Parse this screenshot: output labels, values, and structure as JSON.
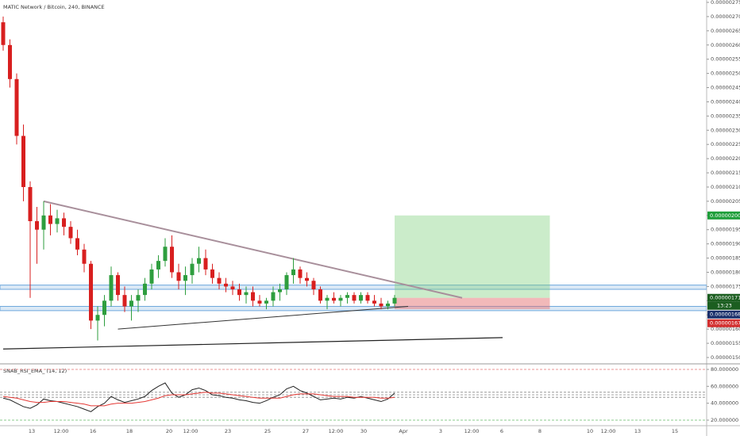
{
  "chart_data": {
    "type": "candlestick",
    "title": "MATIC Network / Bitcoin, 240, BINANCE",
    "up_color": "#2e9e3e",
    "down_color": "#d81f1f",
    "ylim": [
      1.5e-06,
      2.75e-06
    ],
    "yticks": [
      {
        "value": 1.5e-06,
        "label": "0.00000150"
      },
      {
        "value": 1.55e-06,
        "label": "0.00000155"
      },
      {
        "value": 1.6e-06,
        "label": "0.00000160"
      },
      {
        "value": 1.65e-06,
        "label": "0.00000165"
      },
      {
        "value": 1.7e-06,
        "label": "0.00000170"
      },
      {
        "value": 1.75e-06,
        "label": "0.00000175"
      },
      {
        "value": 1.8e-06,
        "label": "0.00000180"
      },
      {
        "value": 1.85e-06,
        "label": "0.00000185"
      },
      {
        "value": 1.9e-06,
        "label": "0.00000190"
      },
      {
        "value": 1.95e-06,
        "label": "0.00000195"
      },
      {
        "value": 2e-06,
        "label": "0.00000200"
      },
      {
        "value": 2.05e-06,
        "label": "0.00000205"
      },
      {
        "value": 2.1e-06,
        "label": "0.00000210"
      },
      {
        "value": 2.15e-06,
        "label": "0.00000215"
      },
      {
        "value": 2.2e-06,
        "label": "0.00000220"
      },
      {
        "value": 2.25e-06,
        "label": "0.00000225"
      },
      {
        "value": 2.3e-06,
        "label": "0.00000230"
      },
      {
        "value": 2.35e-06,
        "label": "0.00000235"
      },
      {
        "value": 2.4e-06,
        "label": "0.00000240"
      },
      {
        "value": 2.45e-06,
        "label": "0.00000245"
      },
      {
        "value": 2.5e-06,
        "label": "0.00000250"
      },
      {
        "value": 2.55e-06,
        "label": "0.00000255"
      },
      {
        "value": 2.6e-06,
        "label": "0.00000260"
      },
      {
        "value": 2.65e-06,
        "label": "0.00000265"
      },
      {
        "value": 2.7e-06,
        "label": "0.00000270"
      },
      {
        "value": 2.75e-06,
        "label": "0.00000275"
      }
    ],
    "x_labels": [
      "13",
      "12:00",
      "16",
      "18",
      "20",
      "12:00",
      "23",
      "25",
      "27",
      "12:00",
      "30",
      "Apr",
      "3",
      "12:00",
      "6",
      "8",
      "10",
      "12:00",
      "13",
      "15"
    ],
    "candles": [
      {
        "o": 2.68e-06,
        "h": 2.7e-06,
        "l": 2.58e-06,
        "c": 2.6e-06
      },
      {
        "o": 2.6e-06,
        "h": 2.62e-06,
        "l": 2.45e-06,
        "c": 2.48e-06
      },
      {
        "o": 2.48e-06,
        "h": 2.5e-06,
        "l": 2.25e-06,
        "c": 2.28e-06
      },
      {
        "o": 2.28e-06,
        "h": 2.32e-06,
        "l": 2.05e-06,
        "c": 2.1e-06
      },
      {
        "o": 2.1e-06,
        "h": 2.12e-06,
        "l": 1.71e-06,
        "c": 1.98e-06
      },
      {
        "o": 1.98e-06,
        "h": 2.03e-06,
        "l": 1.83e-06,
        "c": 1.95e-06
      },
      {
        "o": 1.95e-06,
        "h": 2.05e-06,
        "l": 1.88e-06,
        "c": 2e-06
      },
      {
        "o": 2e-06,
        "h": 2.04e-06,
        "l": 1.93e-06,
        "c": 1.97e-06
      },
      {
        "o": 1.97e-06,
        "h": 2.02e-06,
        "l": 1.94e-06,
        "c": 1.99e-06
      },
      {
        "o": 1.99e-06,
        "h": 2.01e-06,
        "l": 1.93e-06,
        "c": 1.96e-06
      },
      {
        "o": 1.96e-06,
        "h": 1.98e-06,
        "l": 1.9e-06,
        "c": 1.92e-06
      },
      {
        "o": 1.92e-06,
        "h": 1.95e-06,
        "l": 1.86e-06,
        "c": 1.88e-06
      },
      {
        "o": 1.88e-06,
        "h": 1.9e-06,
        "l": 1.8e-06,
        "c": 1.83e-06
      },
      {
        "o": 1.83e-06,
        "h": 1.84e-06,
        "l": 1.6e-06,
        "c": 1.63e-06
      },
      {
        "o": 1.63e-06,
        "h": 1.68e-06,
        "l": 1.56e-06,
        "c": 1.65e-06
      },
      {
        "o": 1.65e-06,
        "h": 1.72e-06,
        "l": 1.61e-06,
        "c": 1.7e-06
      },
      {
        "o": 1.7e-06,
        "h": 1.82e-06,
        "l": 1.68e-06,
        "c": 1.79e-06
      },
      {
        "o": 1.79e-06,
        "h": 1.8e-06,
        "l": 1.7e-06,
        "c": 1.72e-06
      },
      {
        "o": 1.72e-06,
        "h": 1.75e-06,
        "l": 1.66e-06,
        "c": 1.68e-06
      },
      {
        "o": 1.68e-06,
        "h": 1.72e-06,
        "l": 1.63e-06,
        "c": 1.7e-06
      },
      {
        "o": 1.7e-06,
        "h": 1.74e-06,
        "l": 1.66e-06,
        "c": 1.72e-06
      },
      {
        "o": 1.72e-06,
        "h": 1.78e-06,
        "l": 1.7e-06,
        "c": 1.76e-06
      },
      {
        "o": 1.76e-06,
        "h": 1.83e-06,
        "l": 1.74e-06,
        "c": 1.81e-06
      },
      {
        "o": 1.81e-06,
        "h": 1.86e-06,
        "l": 1.78e-06,
        "c": 1.84e-06
      },
      {
        "o": 1.84e-06,
        "h": 1.92e-06,
        "l": 1.82e-06,
        "c": 1.89e-06
      },
      {
        "o": 1.89e-06,
        "h": 1.93e-06,
        "l": 1.78e-06,
        "c": 1.8e-06
      },
      {
        "o": 1.8e-06,
        "h": 1.83e-06,
        "l": 1.74e-06,
        "c": 1.77e-06
      },
      {
        "o": 1.77e-06,
        "h": 1.82e-06,
        "l": 1.72e-06,
        "c": 1.79e-06
      },
      {
        "o": 1.79e-06,
        "h": 1.85e-06,
        "l": 1.76e-06,
        "c": 1.83e-06
      },
      {
        "o": 1.83e-06,
        "h": 1.89e-06,
        "l": 1.8e-06,
        "c": 1.85e-06
      },
      {
        "o": 1.85e-06,
        "h": 1.88e-06,
        "l": 1.79e-06,
        "c": 1.81e-06
      },
      {
        "o": 1.81e-06,
        "h": 1.83e-06,
        "l": 1.76e-06,
        "c": 1.78e-06
      },
      {
        "o": 1.78e-06,
        "h": 1.8e-06,
        "l": 1.74e-06,
        "c": 1.76e-06
      },
      {
        "o": 1.76e-06,
        "h": 1.78e-06,
        "l": 1.73e-06,
        "c": 1.75e-06
      },
      {
        "o": 1.75e-06,
        "h": 1.77e-06,
        "l": 1.72e-06,
        "c": 1.74e-06
      },
      {
        "o": 1.74e-06,
        "h": 1.76e-06,
        "l": 1.7e-06,
        "c": 1.72e-06
      },
      {
        "o": 1.72e-06,
        "h": 1.75e-06,
        "l": 1.69e-06,
        "c": 1.73e-06
      },
      {
        "o": 1.73e-06,
        "h": 1.75e-06,
        "l": 1.68e-06,
        "c": 1.7e-06
      },
      {
        "o": 1.7e-06,
        "h": 1.72e-06,
        "l": 1.68e-06,
        "c": 1.69e-06
      },
      {
        "o": 1.69e-06,
        "h": 1.71e-06,
        "l": 1.67e-06,
        "c": 1.7e-06
      },
      {
        "o": 1.7e-06,
        "h": 1.75e-06,
        "l": 1.68e-06,
        "c": 1.73e-06
      },
      {
        "o": 1.73e-06,
        "h": 1.76e-06,
        "l": 1.7e-06,
        "c": 1.74e-06
      },
      {
        "o": 1.74e-06,
        "h": 1.8e-06,
        "l": 1.72e-06,
        "c": 1.79e-06
      },
      {
        "o": 1.79e-06,
        "h": 1.85e-06,
        "l": 1.76e-06,
        "c": 1.81e-06
      },
      {
        "o": 1.81e-06,
        "h": 1.82e-06,
        "l": 1.76e-06,
        "c": 1.78e-06
      },
      {
        "o": 1.78e-06,
        "h": 1.8e-06,
        "l": 1.75e-06,
        "c": 1.77e-06
      },
      {
        "o": 1.77e-06,
        "h": 1.78e-06,
        "l": 1.72e-06,
        "c": 1.74e-06
      },
      {
        "o": 1.74e-06,
        "h": 1.75e-06,
        "l": 1.69e-06,
        "c": 1.7e-06
      },
      {
        "o": 1.7e-06,
        "h": 1.72e-06,
        "l": 1.67e-06,
        "c": 1.71e-06
      },
      {
        "o": 1.71e-06,
        "h": 1.73e-06,
        "l": 1.69e-06,
        "c": 1.7e-06
      },
      {
        "o": 1.7e-06,
        "h": 1.72e-06,
        "l": 1.68e-06,
        "c": 1.71e-06
      },
      {
        "o": 1.71e-06,
        "h": 1.73e-06,
        "l": 1.69e-06,
        "c": 1.72e-06
      },
      {
        "o": 1.72e-06,
        "h": 1.73e-06,
        "l": 1.69e-06,
        "c": 1.7e-06
      },
      {
        "o": 1.7e-06,
        "h": 1.73e-06,
        "l": 1.69e-06,
        "c": 1.72e-06
      },
      {
        "o": 1.72e-06,
        "h": 1.73e-06,
        "l": 1.69e-06,
        "c": 1.7e-06
      },
      {
        "o": 1.7e-06,
        "h": 1.72e-06,
        "l": 1.68e-06,
        "c": 1.69e-06
      },
      {
        "o": 1.69e-06,
        "h": 1.71e-06,
        "l": 1.67e-06,
        "c": 1.68e-06
      },
      {
        "o": 1.68e-06,
        "h": 1.7e-06,
        "l": 1.67e-06,
        "c": 1.69e-06
      },
      {
        "o": 1.69e-06,
        "h": 1.72e-06,
        "l": 1.68e-06,
        "c": 1.71e-06
      }
    ],
    "zones": [
      {
        "low": 1.74e-06,
        "high": 1.755e-06,
        "color": "#6fa8dc"
      },
      {
        "low": 1.665e-06,
        "high": 1.68e-06,
        "color": "#6fa8dc"
      }
    ],
    "trendlines": [
      {
        "from": [
          6,
          2.05e-06
        ],
        "to": [
          68,
          1.71e-06
        ],
        "color": "#a88f9b",
        "width": 2
      },
      {
        "from": [
          17,
          1.6e-06
        ],
        "to": [
          60,
          1.68e-06
        ],
        "color": "#333333",
        "width": 1
      },
      {
        "from": [
          0,
          1.53e-06
        ],
        "to": [
          74,
          1.57e-06
        ],
        "color": "#222222",
        "width": 1.2
      }
    ],
    "position": {
      "from": 58,
      "to": 81,
      "entry": 1.71e-06,
      "target": 2e-06,
      "stop": 1.67e-06
    },
    "price_tags": [
      {
        "value": 2e-06,
        "label": "0.00000200",
        "color": "#1e9e3a"
      },
      {
        "value": 1.71e-06,
        "label": "0.00000171",
        "color": "#1b5e20"
      },
      {
        "value": 1.68e-06,
        "label": "0.00000168",
        "color": "#1a2f6b"
      },
      {
        "value": 1.67e-06,
        "label": "0.00000167",
        "color": "#d32f2f"
      }
    ],
    "countdown": "13:23",
    "rsi": {
      "title": "SNAB_RSI_EMA_ (14, 12)",
      "ylim": [
        15,
        85
      ],
      "yticks": [
        {
          "value": 80,
          "label": "80.000000"
        },
        {
          "value": 60,
          "label": "60.000000"
        },
        {
          "value": 40,
          "label": "40.000000"
        },
        {
          "value": 20,
          "label": "20.000000"
        }
      ],
      "levels": [
        {
          "value": 80,
          "color": "#e57373"
        },
        {
          "value": 53,
          "color": "#888888"
        },
        {
          "value": 50,
          "color": "#888888"
        },
        {
          "value": 47,
          "color": "#888888"
        },
        {
          "value": 20,
          "color": "#66bb6a"
        }
      ],
      "series": [
        {
          "name": "RSI",
          "color": "#222222",
          "values": [
            46,
            44,
            40,
            36,
            34,
            38,
            45,
            43,
            42,
            40,
            38,
            36,
            33,
            30,
            36,
            40,
            48,
            44,
            41,
            43,
            45,
            48,
            55,
            60,
            64,
            52,
            47,
            50,
            56,
            58,
            55,
            50,
            49,
            47,
            46,
            44,
            43,
            41,
            40,
            43,
            47,
            50,
            57,
            60,
            55,
            52,
            48,
            44,
            45,
            46,
            45,
            47,
            46,
            48,
            46,
            44,
            42,
            45,
            52
          ]
        },
        {
          "name": "EMA",
          "color": "#e53935",
          "values": [
            48,
            47,
            46,
            44,
            42,
            41,
            41,
            42,
            42,
            42,
            41,
            40,
            39,
            37,
            37,
            37,
            39,
            40,
            40,
            40,
            41,
            42,
            44,
            46,
            49,
            50,
            50,
            50,
            51,
            52,
            53,
            52,
            52,
            51,
            50,
            49,
            48,
            47,
            46,
            46,
            46,
            46,
            48,
            50,
            51,
            51,
            51,
            50,
            49,
            48,
            48,
            48,
            47,
            47,
            47,
            47,
            46,
            46,
            47
          ]
        }
      ]
    }
  }
}
